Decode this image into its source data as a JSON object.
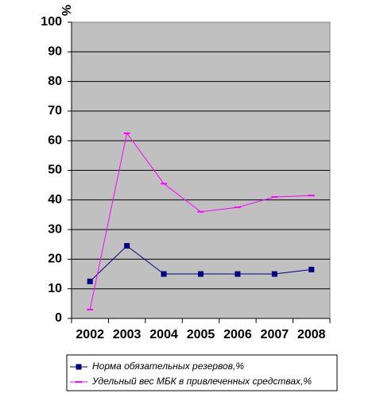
{
  "chart_data": {
    "type": "line",
    "ylabel": "%",
    "ylim": [
      0,
      100
    ],
    "yticks": [
      "0",
      "10",
      "20",
      "30",
      "40",
      "50",
      "60",
      "70",
      "80",
      "90",
      "100"
    ],
    "categories": [
      "2002",
      "2003",
      "2004",
      "2005",
      "2006",
      "2007",
      "2008"
    ],
    "grid": true,
    "legend_position": "bottom",
    "plot_background": "#c0c0c0",
    "series": [
      {
        "name": "Норма обязательных резервов,%",
        "values": [
          12.5,
          24.5,
          15,
          15,
          15,
          15,
          16.5
        ],
        "color": "#000080",
        "marker": "square"
      },
      {
        "name": "Удельный вес МБК  в привлеченных средствах,%",
        "values": [
          3,
          62.5,
          45.5,
          36,
          37.5,
          41,
          41.5
        ],
        "color": "#ff00ff",
        "marker": "dash"
      }
    ]
  }
}
